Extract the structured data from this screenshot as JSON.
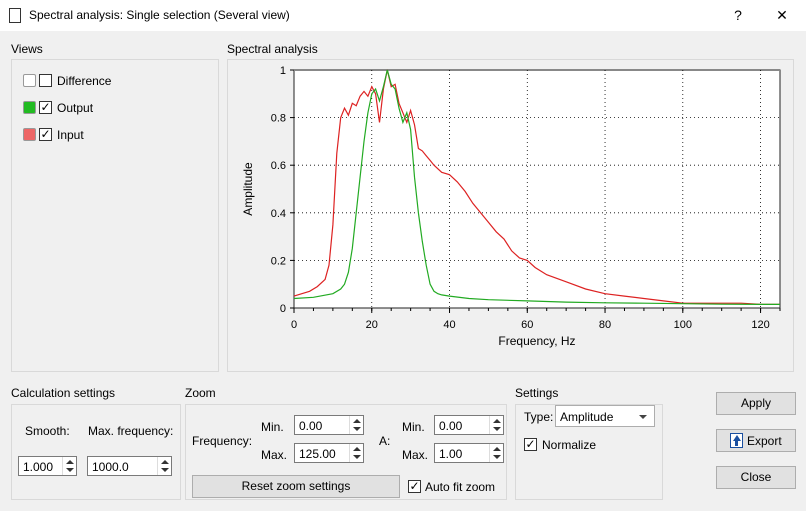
{
  "window": {
    "title": "Spectral analysis: Single selection (Several view)",
    "help_label": "?",
    "close_label": "✕"
  },
  "views": {
    "group_label": "Views",
    "items": [
      {
        "label": "Difference",
        "checked": false,
        "color": ""
      },
      {
        "label": "Output",
        "checked": true,
        "color": "#22bb22"
      },
      {
        "label": "Input",
        "checked": true,
        "color": "#ee6666"
      }
    ]
  },
  "spectral": {
    "group_label": "Spectral analysis"
  },
  "chart_data": {
    "type": "line",
    "xlabel": "Frequency, Hz",
    "ylabel": "Amplitude",
    "xlim": [
      0,
      125
    ],
    "ylim": [
      0,
      1
    ],
    "x_ticks": [
      "0",
      "20",
      "40",
      "60",
      "80",
      "100",
      "120"
    ],
    "y_ticks": [
      "0",
      "0.2",
      "0.4",
      "0.6",
      "0.8",
      "1"
    ],
    "grid": true,
    "legend": "none",
    "series": [
      {
        "color": "#dd2222",
        "x": [
          0,
          2,
          4,
          6,
          8,
          9,
          10,
          11,
          12,
          13,
          14,
          15,
          16,
          17,
          18,
          19,
          20,
          21,
          22,
          23,
          24,
          25,
          26,
          27,
          28,
          29,
          30,
          31,
          32,
          33,
          34,
          35,
          36,
          38,
          40,
          42,
          44,
          46,
          48,
          50,
          52,
          54,
          56,
          58,
          60,
          62,
          65,
          70,
          75,
          80,
          85,
          90,
          95,
          100,
          105,
          110,
          115,
          120,
          125
        ],
        "values": [
          0.05,
          0.06,
          0.07,
          0.09,
          0.12,
          0.18,
          0.35,
          0.65,
          0.8,
          0.84,
          0.81,
          0.86,
          0.85,
          0.89,
          0.91,
          0.89,
          0.93,
          0.9,
          0.78,
          0.92,
          1.0,
          0.93,
          0.94,
          0.86,
          0.82,
          0.78,
          0.83,
          0.77,
          0.67,
          0.66,
          0.64,
          0.62,
          0.6,
          0.57,
          0.56,
          0.53,
          0.49,
          0.44,
          0.4,
          0.36,
          0.32,
          0.29,
          0.24,
          0.21,
          0.2,
          0.17,
          0.14,
          0.11,
          0.08,
          0.06,
          0.05,
          0.04,
          0.03,
          0.02,
          0.02,
          0.02,
          0.02,
          0.015,
          0.015
        ]
      },
      {
        "color": "#22aa22",
        "x": [
          0,
          5,
          10,
          12,
          13,
          14,
          15,
          16,
          17,
          18,
          19,
          20,
          21,
          22,
          23,
          24,
          25,
          26,
          27,
          28,
          29,
          30,
          31,
          32,
          33,
          34,
          35,
          36,
          37,
          38,
          40,
          45,
          50,
          60,
          70,
          80,
          90,
          100,
          110,
          120,
          125
        ],
        "values": [
          0.04,
          0.045,
          0.06,
          0.08,
          0.1,
          0.15,
          0.25,
          0.4,
          0.55,
          0.7,
          0.82,
          0.9,
          0.92,
          0.87,
          0.93,
          1.0,
          0.94,
          0.92,
          0.84,
          0.78,
          0.82,
          0.75,
          0.55,
          0.4,
          0.28,
          0.18,
          0.1,
          0.07,
          0.06,
          0.055,
          0.05,
          0.04,
          0.035,
          0.03,
          0.025,
          0.022,
          0.02,
          0.018,
          0.016,
          0.015,
          0.015
        ]
      }
    ]
  },
  "calc": {
    "group_label": "Calculation settings",
    "smooth_label": "Smooth:",
    "smooth_value": "1.000",
    "maxfreq_label": "Max. frequency:",
    "maxfreq_value": "1000.0"
  },
  "zoom": {
    "group_label": "Zoom",
    "frequency_label": "Frequency:",
    "freq_min_label": "Min.",
    "freq_min_value": "0.00",
    "freq_max_label": "Max.",
    "freq_max_value": "125.00",
    "a_label": "A:",
    "a_min_label": "Min.",
    "a_min_value": "0.00",
    "a_max_label": "Max.",
    "a_max_value": "1.00",
    "reset_label": "Reset zoom settings",
    "autofit_label": "Auto fit zoom",
    "autofit_checked": true
  },
  "settings": {
    "group_label": "Settings",
    "type_label": "Type:",
    "type_value": "Amplitude",
    "normalize_label": "Normalize",
    "normalize_checked": true
  },
  "actions": {
    "apply_label": "Apply",
    "export_label": "Export",
    "close_label": "Close"
  }
}
